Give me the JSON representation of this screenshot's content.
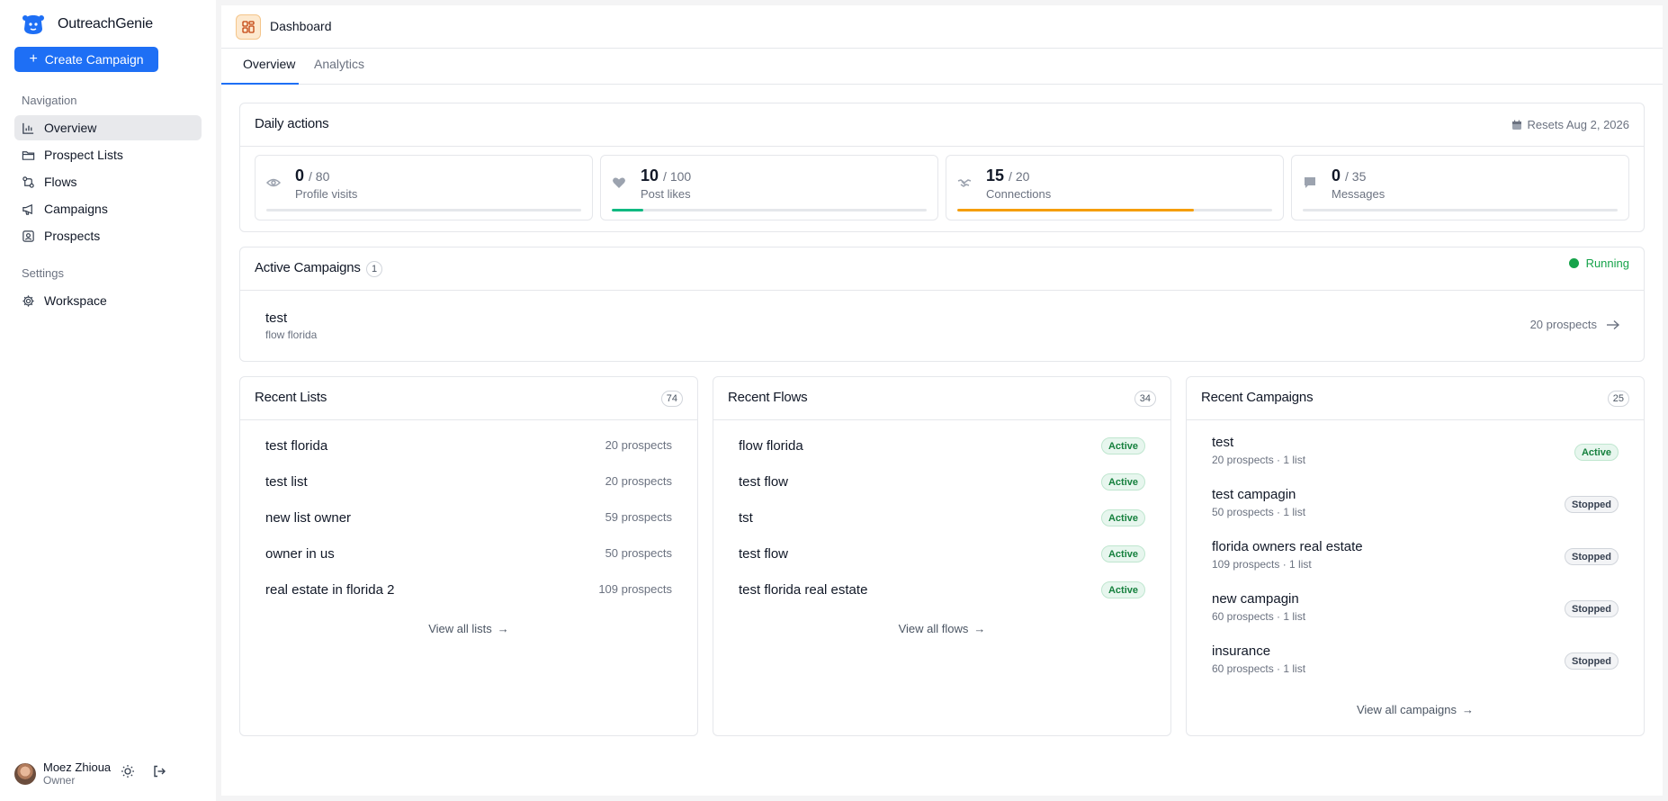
{
  "app": {
    "name": "OutreachGenie"
  },
  "sidebar": {
    "create_label": "Create Campaign",
    "nav_section": "Navigation",
    "nav": [
      {
        "label": "Overview",
        "icon": "bar-chart-icon",
        "active": true
      },
      {
        "label": "Prospect Lists",
        "icon": "folder-icon"
      },
      {
        "label": "Flows",
        "icon": "flow-icon"
      },
      {
        "label": "Campaigns",
        "icon": "megaphone-icon"
      },
      {
        "label": "Prospects",
        "icon": "contact-icon"
      }
    ],
    "settings_section": "Settings",
    "settings": [
      {
        "label": "Workspace",
        "icon": "gear-icon"
      }
    ],
    "user": {
      "name": "Moez Zhioua",
      "role": "Owner"
    }
  },
  "header": {
    "title": "Dashboard"
  },
  "tabs": [
    {
      "label": "Overview",
      "active": true
    },
    {
      "label": "Analytics"
    }
  ],
  "daily": {
    "title": "Daily actions",
    "resets": "Resets Aug 2, 2026",
    "metrics": [
      {
        "value": "0",
        "max": "/ 80",
        "label": "Profile visits",
        "icon": "eye-icon",
        "progress": 0,
        "color": "#16a34a"
      },
      {
        "value": "10",
        "max": "/ 100",
        "label": "Post likes",
        "icon": "heart-icon",
        "progress": 0.1,
        "color": "#10b981"
      },
      {
        "value": "15",
        "max": "/ 20",
        "label": "Connections",
        "icon": "handshake-icon",
        "progress": 0.75,
        "color": "#f59e0b"
      },
      {
        "value": "0",
        "max": "/ 35",
        "label": "Messages",
        "icon": "message-icon",
        "progress": 0,
        "color": "#3b82f6"
      }
    ]
  },
  "active_campaigns": {
    "title": "Active Campaigns",
    "count": "1",
    "status": "Running",
    "items": [
      {
        "name": "test",
        "flow": "flow florida",
        "prospects": "20 prospects"
      }
    ]
  },
  "recent_lists": {
    "title": "Recent Lists",
    "count": "74",
    "items": [
      {
        "name": "test florida",
        "meta": "20 prospects"
      },
      {
        "name": "test list",
        "meta": "20 prospects"
      },
      {
        "name": "new list owner",
        "meta": "59 prospects"
      },
      {
        "name": "owner in us",
        "meta": "50 prospects"
      },
      {
        "name": "real estate in florida 2",
        "meta": "109 prospects"
      }
    ],
    "view_all": "View all lists"
  },
  "recent_flows": {
    "title": "Recent Flows",
    "count": "34",
    "items": [
      {
        "name": "flow florida",
        "status": "Active"
      },
      {
        "name": "test flow",
        "status": "Active"
      },
      {
        "name": "tst",
        "status": "Active"
      },
      {
        "name": "test flow",
        "status": "Active"
      },
      {
        "name": "test florida real estate",
        "status": "Active"
      }
    ],
    "view_all": "View all flows"
  },
  "recent_campaigns": {
    "title": "Recent Campaigns",
    "count": "25",
    "items": [
      {
        "name": "test",
        "sub": "20 prospects · 1 list",
        "status": "Active"
      },
      {
        "name": "test campagin",
        "sub": "50 prospects · 1 list",
        "status": "Stopped"
      },
      {
        "name": "florida owners real estate",
        "sub": "109 prospects · 1 list",
        "status": "Stopped"
      },
      {
        "name": "new campagin",
        "sub": "60 prospects · 1 list",
        "status": "Stopped"
      },
      {
        "name": "insurance",
        "sub": "60 prospects · 1 list",
        "status": "Stopped"
      }
    ],
    "view_all": "View all campaigns"
  }
}
